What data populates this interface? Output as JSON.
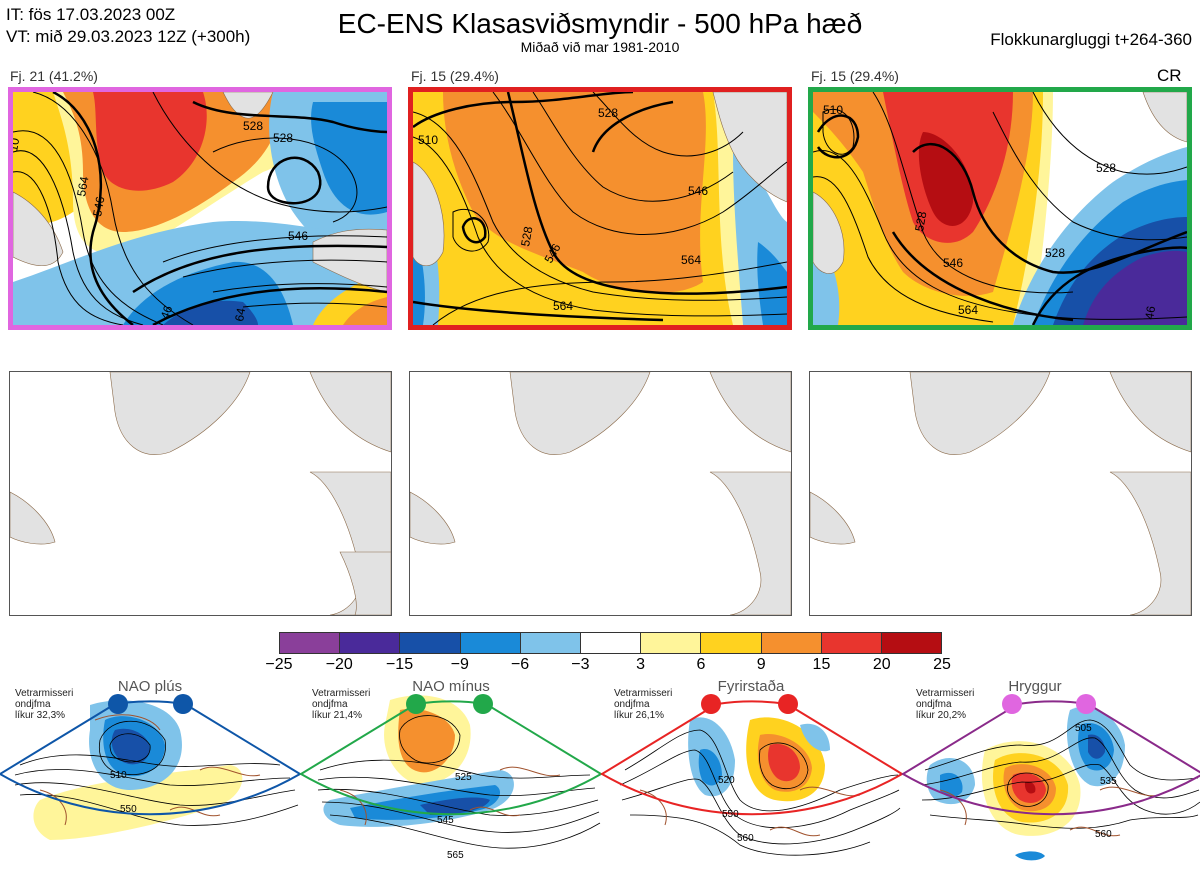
{
  "header": {
    "it_line": "IT: fös 17.03.2023 00Z",
    "vt_line": "VT: mið 29.03.2023 12Z  (+300h)",
    "title": "EC-ENS Klasasviðsmyndir - 500 hPa hæð",
    "subtitle": "Miðað við mar 1981-2010",
    "window": "Flokkunargluggi t+264-360"
  },
  "panels": [
    {
      "label": "Fj. 21 (41.2%)",
      "border_color": "#e066e0",
      "contours": [
        "528",
        "546",
        "564",
        "528",
        "546",
        "46",
        "64",
        "10"
      ]
    },
    {
      "label": "Fj. 15 (29.4%)",
      "border_color": "#e02020",
      "contours": [
        "528",
        "510",
        "546",
        "528",
        "546",
        "564",
        "564"
      ]
    },
    {
      "label": "Fj. 15 (29.4%)",
      "border_color": "#22a84a",
      "contours": [
        "510",
        "528",
        "528",
        "546",
        "528",
        "564",
        "46"
      ]
    }
  ],
  "cr_label": "CR",
  "colorbar": {
    "ticks": [
      "−25",
      "−20",
      "−15",
      "−9",
      "−6",
      "−3",
      "3",
      "6",
      "9",
      "15",
      "20",
      "25"
    ],
    "colors": [
      "#8a3f9a",
      "#4a2a9a",
      "#1750a8",
      "#1a8ad8",
      "#7fc3ea",
      "#ffffff",
      "#fff59a",
      "#ffd21f",
      "#f5902e",
      "#e8352e",
      "#b50d12"
    ]
  },
  "regimes": [
    {
      "name": "NAO plús",
      "note_l1": "Vetrarmisseri",
      "note_l2": "ondjfma",
      "note_l3": "líkur 32,3%",
      "dot_color": "#0e56a8",
      "border_color": "#0e56a8",
      "contours": [
        "510",
        "550"
      ]
    },
    {
      "name": "NAO mínus",
      "note_l1": "Vetrarmisseri",
      "note_l2": "ondjfma",
      "note_l3": "líkur 21,4%",
      "dot_color": "#22a84a",
      "border_color": "#22a84a",
      "contours": [
        "525",
        "545",
        "565"
      ]
    },
    {
      "name": "Fyrirstaða",
      "note_l1": "Vetrarmisseri",
      "note_l2": "ondjfma",
      "note_l3": "líkur 26,1%",
      "dot_color": "#e82424",
      "border_color": "#e82424",
      "contours": [
        "520",
        "550",
        "560"
      ]
    },
    {
      "name": "Hryggur",
      "note_l1": "Vetrarmisseri",
      "note_l2": "ondjfma",
      "note_l3": "líkur 20,2%",
      "dot_color": "#e066e0",
      "border_color": "#8a2a8a",
      "contours": [
        "505",
        "535",
        "560"
      ]
    }
  ]
}
